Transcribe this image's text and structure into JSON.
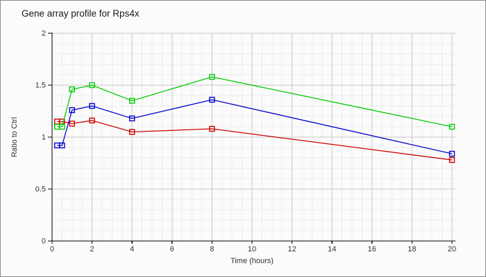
{
  "chart_data": {
    "type": "line",
    "title": "Gene array profile for Rps4x",
    "xlabel": "Time (hours)",
    "ylabel": "Ratio to Ctrl",
    "xlim": [
      0,
      20
    ],
    "ylim": [
      0,
      2
    ],
    "x_major_step": 2,
    "x_minor_step": 0.5,
    "y_major_step": 0.5,
    "y_minor_step": 0.1,
    "x_tick_labels": [
      "0",
      "2",
      "4",
      "6",
      "8",
      "10",
      "12",
      "14",
      "16",
      "18",
      "20"
    ],
    "y_tick_labels": [
      "0",
      "0.5",
      "1",
      "1.5",
      "2"
    ],
    "grid": true,
    "legend": "none",
    "marker": "open-square",
    "x": [
      0.25,
      0.5,
      1,
      2,
      4,
      8,
      20
    ],
    "series": [
      {
        "name": "red-series",
        "color": "#cc0000",
        "values": [
          1.15,
          1.15,
          1.13,
          1.16,
          1.05,
          1.08,
          0.78
        ]
      },
      {
        "name": "green-series",
        "color": "#00cc00",
        "values": [
          1.1,
          1.1,
          1.46,
          1.5,
          1.35,
          1.58,
          1.1
        ]
      },
      {
        "name": "blue-series",
        "color": "#0000cc",
        "values": [
          0.92,
          0.92,
          1.26,
          1.3,
          1.18,
          1.36,
          0.84
        ]
      }
    ],
    "colors": {
      "background": "#fbfbfb",
      "border": "#8a8a8a",
      "grid_minor": "#ececec",
      "grid_major": "#c8c8c8",
      "axis": "#000000",
      "tick_label": "#333333",
      "title_text": "#1a1a1a"
    }
  }
}
